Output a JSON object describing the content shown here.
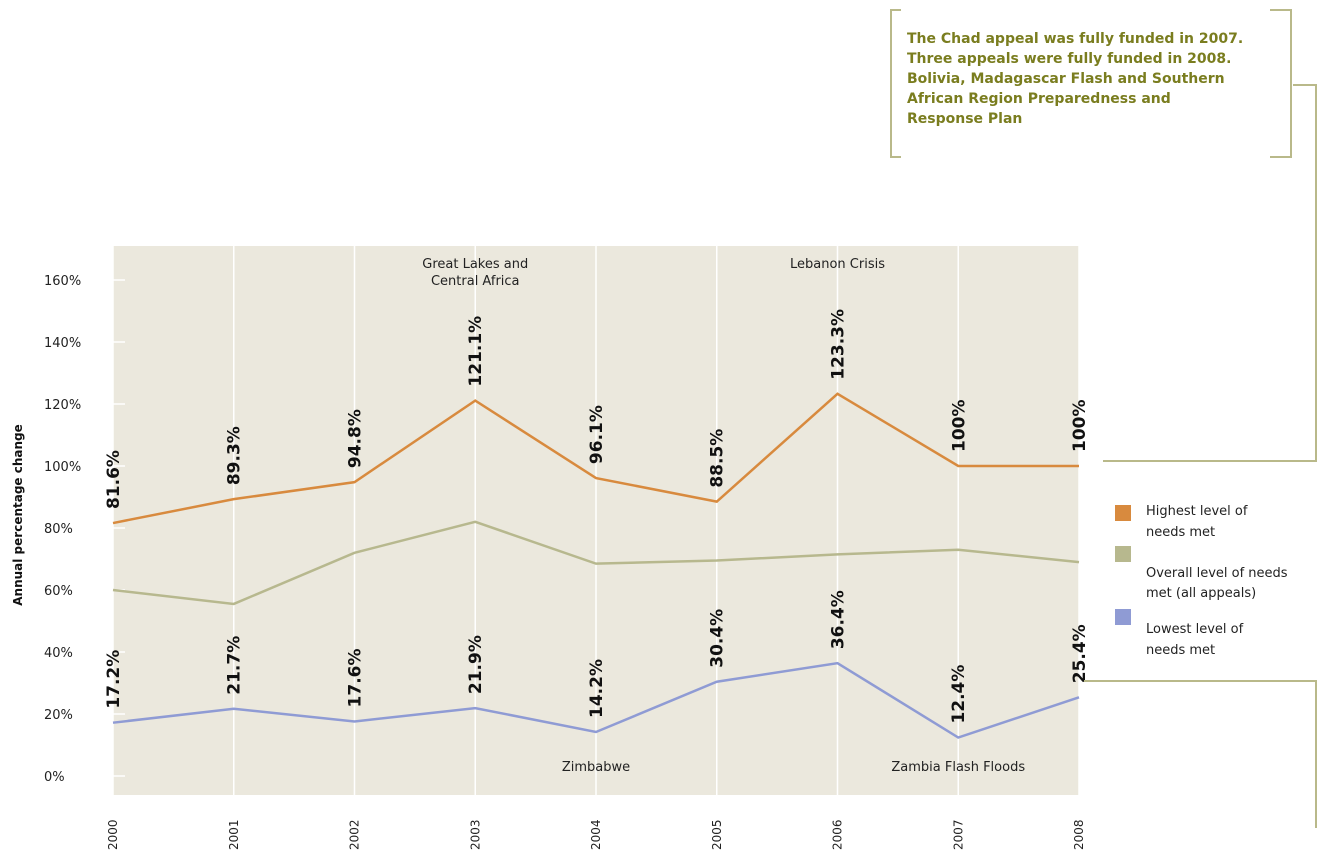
{
  "colors": {
    "plot_bg": "#ebe8dd",
    "grid": "#ffffff",
    "highest": "#d88a3e",
    "overall": "#b7b88e",
    "lowest": "#8f9bd4",
    "callout_text": "#7a7d1f",
    "bracket": "#b9b98a"
  },
  "callout": {
    "lines": [
      "The Chad appeal was fully funded in 2007.",
      "Three appeals were fully funded in 2008.",
      "Bolivia, Madagascar Flash and Southern",
      "African Region Preparedness and",
      "Response Plan"
    ]
  },
  "legend": [
    {
      "label_lines": [
        "Highest level of",
        "needs met"
      ],
      "color": "#d88a3e"
    },
    {
      "label_lines": [
        "Overall level of needs",
        "met (all appeals)"
      ],
      "color": "#b7b88e"
    },
    {
      "label_lines": [
        "Lowest level of",
        "needs met"
      ],
      "color": "#8f9bd4"
    }
  ],
  "chart_data": {
    "type": "line",
    "title": "",
    "ylabel": "Annual percentage change",
    "xlabel": "",
    "x": [
      "2000",
      "2001",
      "2002",
      "2003",
      "2004",
      "2005",
      "2006",
      "2007",
      "2008"
    ],
    "ylim": [
      -5,
      170
    ],
    "yticks": [
      0,
      20,
      40,
      60,
      80,
      100,
      120,
      140,
      160
    ],
    "ytick_labels": [
      "0%",
      "20%",
      "40%",
      "60%",
      "80%",
      "100%",
      "120%",
      "140%",
      "160%"
    ],
    "grid": "vertical lines at each year",
    "series": [
      {
        "key": "highest",
        "values": [
          81.6,
          89.3,
          94.8,
          121.1,
          96.1,
          88.5,
          123.3,
          100,
          100
        ],
        "point_labels": [
          "81.6%",
          "89.3%",
          "94.8%",
          "121.1%",
          "96.1%",
          "88.5%",
          "123.3%",
          "100%",
          "100%"
        ],
        "color": "#d88a3e"
      },
      {
        "key": "overall",
        "values": [
          60,
          55.5,
          72,
          82,
          68.5,
          69.5,
          71.5,
          73,
          69
        ],
        "color": "#b7b88e"
      },
      {
        "key": "lowest",
        "values": [
          17.2,
          21.7,
          17.6,
          21.9,
          14.2,
          30.4,
          36.4,
          12.4,
          25.4
        ],
        "point_labels": [
          "17.2%",
          "21.7%",
          "17.6%",
          "21.9%",
          "14.2%",
          "30.4%",
          "36.4%",
          "12.4%",
          "25.4%"
        ],
        "color": "#8f9bd4"
      }
    ],
    "annotations": [
      {
        "lines": [
          "Great Lakes and",
          "Central Africa"
        ],
        "year": "2003"
      },
      {
        "lines": [
          "Lebanon Crisis"
        ],
        "year": "2006"
      },
      {
        "lines": [
          "Zimbabwe"
        ],
        "year": "2004"
      },
      {
        "lines": [
          "Zambia Flash Floods"
        ],
        "year": "2007"
      }
    ]
  }
}
